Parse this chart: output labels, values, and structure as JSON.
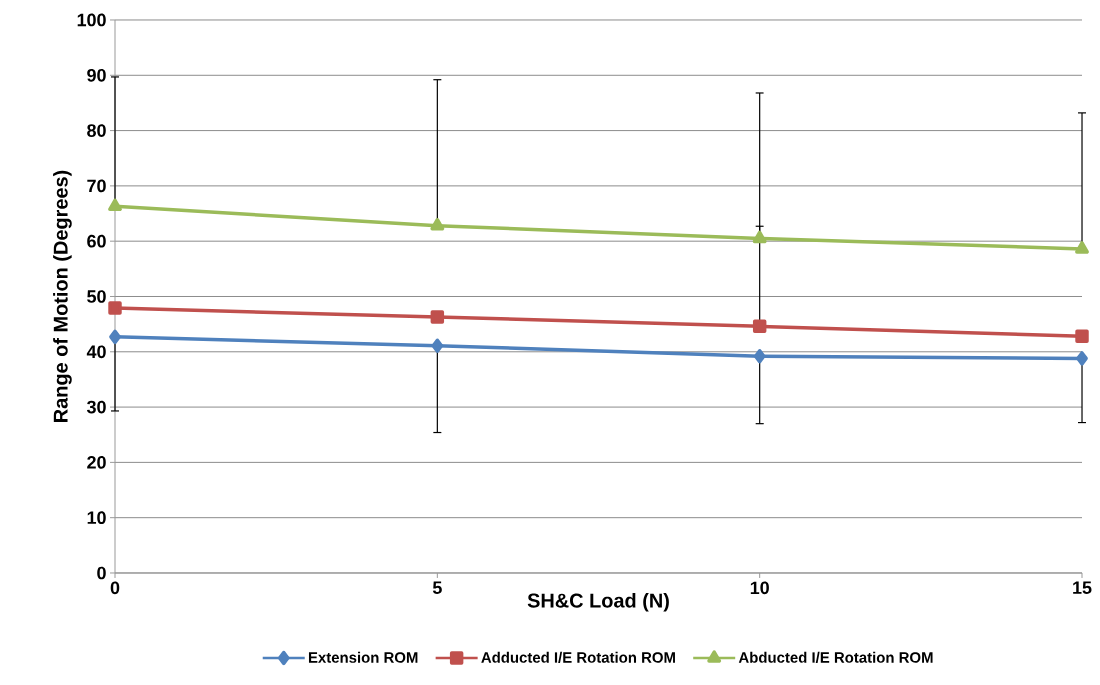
{
  "chart_data": {
    "type": "line",
    "xlabel": "SH&C Load (N)",
    "ylabel": "Range of Motion (Degrees)",
    "x": [
      0,
      5,
      10,
      15
    ],
    "xlim": [
      0,
      15
    ],
    "xticks": [
      0,
      5,
      10,
      15
    ],
    "ylim": [
      0,
      100
    ],
    "yticks": [
      0,
      10,
      20,
      30,
      40,
      50,
      60,
      70,
      80,
      90,
      100
    ],
    "grid": "y",
    "legend": "bottom",
    "series": [
      {
        "name": "Extension ROM",
        "color": "#4f81bd",
        "marker": "diamond",
        "values": [
          42.7,
          41.1,
          39.2,
          38.8
        ],
        "errors": [
          [
            29.3,
            42.7
          ],
          [
            25.4,
            41.1
          ],
          [
            27.0,
            39.2
          ],
          [
            27.2,
            38.8
          ]
        ]
      },
      {
        "name": "Adducted I/E Rotation ROM",
        "color": "#c0504d",
        "marker": "square",
        "values": [
          47.9,
          46.3,
          44.6,
          42.8
        ],
        "errors": [
          null,
          null,
          [
            44.6,
            62.7
          ],
          null
        ]
      },
      {
        "name": "Abducted I/E Rotation ROM",
        "color": "#9bbb59",
        "marker": "triangle",
        "values": [
          66.3,
          62.8,
          60.5,
          58.6
        ],
        "errors": [
          [
            66.3,
            89.7
          ],
          [
            62.8,
            89.2
          ],
          [
            60.5,
            86.8
          ],
          [
            58.6,
            83.2
          ]
        ]
      }
    ]
  }
}
